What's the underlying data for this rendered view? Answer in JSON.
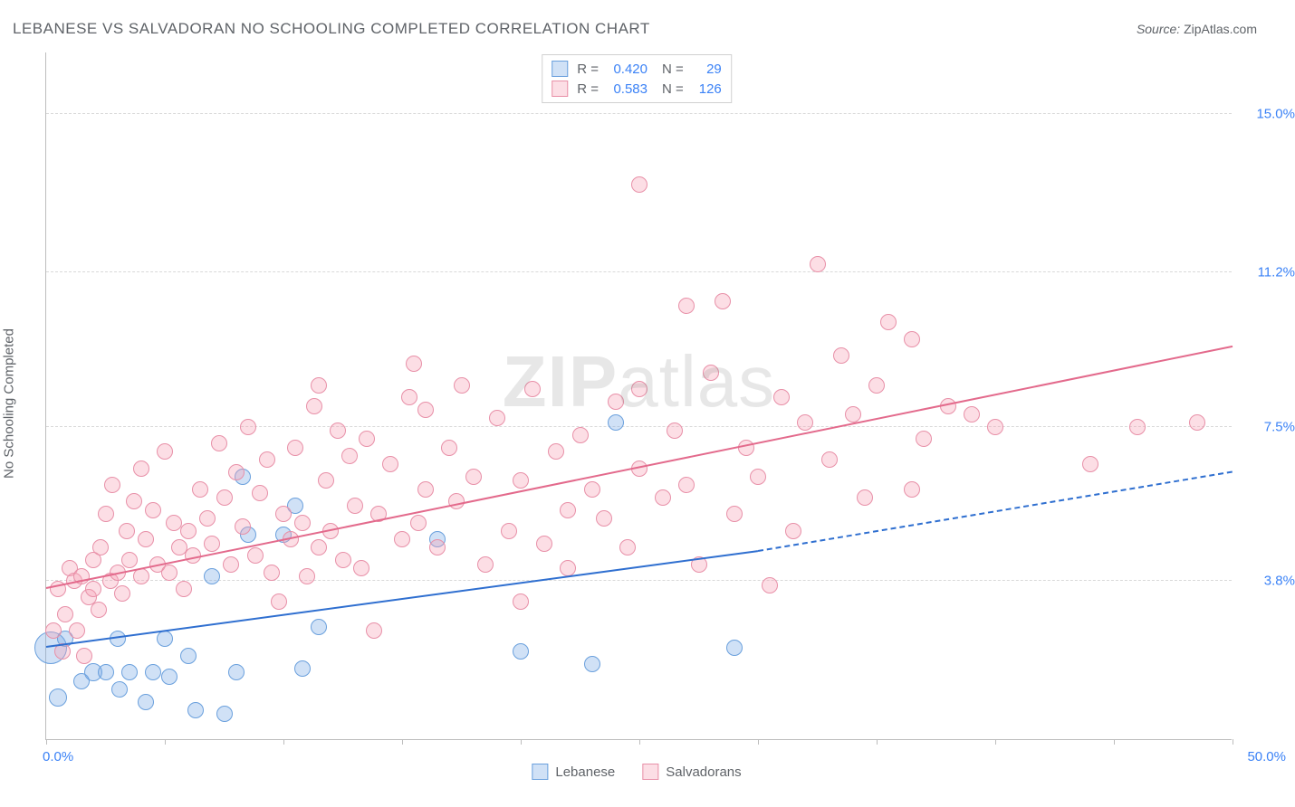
{
  "title": "LEBANESE VS SALVADORAN NO SCHOOLING COMPLETED CORRELATION CHART",
  "source_label": "Source:",
  "source_name": "ZipAtlas.com",
  "watermark_bold": "ZIP",
  "watermark_light": "atlas",
  "y_axis_title": "No Schooling Completed",
  "x_axis": {
    "min_label": "0.0%",
    "max_label": "50.0%",
    "min": 0,
    "max": 50,
    "ticks": [
      0,
      5,
      10,
      15,
      20,
      25,
      30,
      35,
      40,
      45,
      50
    ]
  },
  "y_axis": {
    "min": 0,
    "max": 16.5,
    "grid": [
      {
        "v": 3.8,
        "label": "3.8%"
      },
      {
        "v": 7.5,
        "label": "7.5%"
      },
      {
        "v": 11.2,
        "label": "11.2%"
      },
      {
        "v": 15.0,
        "label": "15.0%"
      }
    ]
  },
  "series": [
    {
      "name": "Lebanese",
      "fill": "rgba(120,170,230,0.35)",
      "stroke": "#6aa0dd",
      "line_color": "#2f6fd0",
      "r_value": "0.420",
      "n_value": "29",
      "trend": {
        "x1": 0,
        "y1": 2.2,
        "x2_solid": 30,
        "y2_solid": 4.5,
        "x2_ext": 50,
        "y2_ext": 6.4
      },
      "points": [
        {
          "x": 0.2,
          "y": 2.2,
          "r": 18
        },
        {
          "x": 0.5,
          "y": 1.0,
          "r": 10
        },
        {
          "x": 0.8,
          "y": 2.4,
          "r": 9
        },
        {
          "x": 1.5,
          "y": 1.4,
          "r": 9
        },
        {
          "x": 2.0,
          "y": 1.6,
          "r": 10
        },
        {
          "x": 2.5,
          "y": 1.6,
          "r": 9
        },
        {
          "x": 3.0,
          "y": 2.4,
          "r": 9
        },
        {
          "x": 3.1,
          "y": 1.2,
          "r": 9
        },
        {
          "x": 3.5,
          "y": 1.6,
          "r": 9
        },
        {
          "x": 4.2,
          "y": 0.9,
          "r": 9
        },
        {
          "x": 4.5,
          "y": 1.6,
          "r": 9
        },
        {
          "x": 5.0,
          "y": 2.4,
          "r": 9
        },
        {
          "x": 5.2,
          "y": 1.5,
          "r": 9
        },
        {
          "x": 6.0,
          "y": 2.0,
          "r": 9
        },
        {
          "x": 6.3,
          "y": 0.7,
          "r": 9
        },
        {
          "x": 7.0,
          "y": 3.9,
          "r": 9
        },
        {
          "x": 7.5,
          "y": 0.6,
          "r": 9
        },
        {
          "x": 8.0,
          "y": 1.6,
          "r": 9
        },
        {
          "x": 8.3,
          "y": 6.3,
          "r": 9
        },
        {
          "x": 8.5,
          "y": 4.9,
          "r": 9
        },
        {
          "x": 10.0,
          "y": 4.9,
          "r": 9
        },
        {
          "x": 10.5,
          "y": 5.6,
          "r": 9
        },
        {
          "x": 10.8,
          "y": 1.7,
          "r": 9
        },
        {
          "x": 11.5,
          "y": 2.7,
          "r": 9
        },
        {
          "x": 16.5,
          "y": 4.8,
          "r": 9
        },
        {
          "x": 20.0,
          "y": 2.1,
          "r": 9
        },
        {
          "x": 23.0,
          "y": 1.8,
          "r": 9
        },
        {
          "x": 24.0,
          "y": 7.6,
          "r": 9
        },
        {
          "x": 29.0,
          "y": 2.2,
          "r": 9
        }
      ]
    },
    {
      "name": "Salvadorans",
      "fill": "rgba(245,160,180,0.35)",
      "stroke": "#e890a8",
      "line_color": "#e36a8c",
      "r_value": "0.583",
      "n_value": "126",
      "trend": {
        "x1": 0,
        "y1": 3.6,
        "x2_solid": 50,
        "y2_solid": 9.4,
        "x2_ext": 50,
        "y2_ext": 9.4
      },
      "points": [
        {
          "x": 0.3,
          "y": 2.6,
          "r": 9
        },
        {
          "x": 0.5,
          "y": 3.6,
          "r": 9
        },
        {
          "x": 0.7,
          "y": 2.1,
          "r": 9
        },
        {
          "x": 0.8,
          "y": 3.0,
          "r": 9
        },
        {
          "x": 1.0,
          "y": 4.1,
          "r": 9
        },
        {
          "x": 1.2,
          "y": 3.8,
          "r": 9
        },
        {
          "x": 1.3,
          "y": 2.6,
          "r": 9
        },
        {
          "x": 1.5,
          "y": 3.9,
          "r": 9
        },
        {
          "x": 1.6,
          "y": 2.0,
          "r": 9
        },
        {
          "x": 1.8,
          "y": 3.4,
          "r": 9
        },
        {
          "x": 2.0,
          "y": 4.3,
          "r": 9
        },
        {
          "x": 2.0,
          "y": 3.6,
          "r": 9
        },
        {
          "x": 2.2,
          "y": 3.1,
          "r": 9
        },
        {
          "x": 2.3,
          "y": 4.6,
          "r": 9
        },
        {
          "x": 2.5,
          "y": 5.4,
          "r": 9
        },
        {
          "x": 2.7,
          "y": 3.8,
          "r": 9
        },
        {
          "x": 2.8,
          "y": 6.1,
          "r": 9
        },
        {
          "x": 3.0,
          "y": 4.0,
          "r": 9
        },
        {
          "x": 3.2,
          "y": 3.5,
          "r": 9
        },
        {
          "x": 3.4,
          "y": 5.0,
          "r": 9
        },
        {
          "x": 3.5,
          "y": 4.3,
          "r": 9
        },
        {
          "x": 3.7,
          "y": 5.7,
          "r": 9
        },
        {
          "x": 4.0,
          "y": 6.5,
          "r": 9
        },
        {
          "x": 4.0,
          "y": 3.9,
          "r": 9
        },
        {
          "x": 4.2,
          "y": 4.8,
          "r": 9
        },
        {
          "x": 4.5,
          "y": 5.5,
          "r": 9
        },
        {
          "x": 4.7,
          "y": 4.2,
          "r": 9
        },
        {
          "x": 5.0,
          "y": 6.9,
          "r": 9
        },
        {
          "x": 5.2,
          "y": 4.0,
          "r": 9
        },
        {
          "x": 5.4,
          "y": 5.2,
          "r": 9
        },
        {
          "x": 5.6,
          "y": 4.6,
          "r": 9
        },
        {
          "x": 5.8,
          "y": 3.6,
          "r": 9
        },
        {
          "x": 6.0,
          "y": 5.0,
          "r": 9
        },
        {
          "x": 6.2,
          "y": 4.4,
          "r": 9
        },
        {
          "x": 6.5,
          "y": 6.0,
          "r": 9
        },
        {
          "x": 6.8,
          "y": 5.3,
          "r": 9
        },
        {
          "x": 7.0,
          "y": 4.7,
          "r": 9
        },
        {
          "x": 7.3,
          "y": 7.1,
          "r": 9
        },
        {
          "x": 7.5,
          "y": 5.8,
          "r": 9
        },
        {
          "x": 7.8,
          "y": 4.2,
          "r": 9
        },
        {
          "x": 8.0,
          "y": 6.4,
          "r": 9
        },
        {
          "x": 8.3,
          "y": 5.1,
          "r": 9
        },
        {
          "x": 8.5,
          "y": 7.5,
          "r": 9
        },
        {
          "x": 8.8,
          "y": 4.4,
          "r": 9
        },
        {
          "x": 9.0,
          "y": 5.9,
          "r": 9
        },
        {
          "x": 9.3,
          "y": 6.7,
          "r": 9
        },
        {
          "x": 9.5,
          "y": 4.0,
          "r": 9
        },
        {
          "x": 9.8,
          "y": 3.3,
          "r": 9
        },
        {
          "x": 10.0,
          "y": 5.4,
          "r": 9
        },
        {
          "x": 10.3,
          "y": 4.8,
          "r": 9
        },
        {
          "x": 10.5,
          "y": 7.0,
          "r": 9
        },
        {
          "x": 10.8,
          "y": 5.2,
          "r": 9
        },
        {
          "x": 11.0,
          "y": 3.9,
          "r": 9
        },
        {
          "x": 11.3,
          "y": 8.0,
          "r": 9
        },
        {
          "x": 11.5,
          "y": 4.6,
          "r": 9
        },
        {
          "x": 11.5,
          "y": 8.5,
          "r": 9
        },
        {
          "x": 11.8,
          "y": 6.2,
          "r": 9
        },
        {
          "x": 12.0,
          "y": 5.0,
          "r": 9
        },
        {
          "x": 12.3,
          "y": 7.4,
          "r": 9
        },
        {
          "x": 12.5,
          "y": 4.3,
          "r": 9
        },
        {
          "x": 12.8,
          "y": 6.8,
          "r": 9
        },
        {
          "x": 13.0,
          "y": 5.6,
          "r": 9
        },
        {
          "x": 13.3,
          "y": 4.1,
          "r": 9
        },
        {
          "x": 13.5,
          "y": 7.2,
          "r": 9
        },
        {
          "x": 13.8,
          "y": 2.6,
          "r": 9
        },
        {
          "x": 14.0,
          "y": 5.4,
          "r": 9
        },
        {
          "x": 14.5,
          "y": 6.6,
          "r": 9
        },
        {
          "x": 15.0,
          "y": 4.8,
          "r": 9
        },
        {
          "x": 15.3,
          "y": 8.2,
          "r": 9
        },
        {
          "x": 15.5,
          "y": 9.0,
          "r": 9
        },
        {
          "x": 15.7,
          "y": 5.2,
          "r": 9
        },
        {
          "x": 16.0,
          "y": 6.0,
          "r": 9
        },
        {
          "x": 16.0,
          "y": 7.9,
          "r": 9
        },
        {
          "x": 16.5,
          "y": 4.6,
          "r": 9
        },
        {
          "x": 17.0,
          "y": 7.0,
          "r": 9
        },
        {
          "x": 17.3,
          "y": 5.7,
          "r": 9
        },
        {
          "x": 17.5,
          "y": 8.5,
          "r": 9
        },
        {
          "x": 18.0,
          "y": 6.3,
          "r": 9
        },
        {
          "x": 18.5,
          "y": 4.2,
          "r": 9
        },
        {
          "x": 19.0,
          "y": 7.7,
          "r": 9
        },
        {
          "x": 19.5,
          "y": 5.0,
          "r": 9
        },
        {
          "x": 20.0,
          "y": 6.2,
          "r": 9
        },
        {
          "x": 20.0,
          "y": 3.3,
          "r": 9
        },
        {
          "x": 20.5,
          "y": 8.4,
          "r": 9
        },
        {
          "x": 21.0,
          "y": 4.7,
          "r": 9
        },
        {
          "x": 21.5,
          "y": 6.9,
          "r": 9
        },
        {
          "x": 22.0,
          "y": 5.5,
          "r": 9
        },
        {
          "x": 22.0,
          "y": 4.1,
          "r": 9
        },
        {
          "x": 22.5,
          "y": 7.3,
          "r": 9
        },
        {
          "x": 23.0,
          "y": 6.0,
          "r": 9
        },
        {
          "x": 23.5,
          "y": 5.3,
          "r": 9
        },
        {
          "x": 24.0,
          "y": 8.1,
          "r": 9
        },
        {
          "x": 24.5,
          "y": 4.6,
          "r": 9
        },
        {
          "x": 25.0,
          "y": 8.4,
          "r": 9
        },
        {
          "x": 25.0,
          "y": 6.5,
          "r": 9
        },
        {
          "x": 25.0,
          "y": 13.3,
          "r": 9
        },
        {
          "x": 26.0,
          "y": 5.8,
          "r": 9
        },
        {
          "x": 26.5,
          "y": 7.4,
          "r": 9
        },
        {
          "x": 27.0,
          "y": 6.1,
          "r": 9
        },
        {
          "x": 27.0,
          "y": 10.4,
          "r": 9
        },
        {
          "x": 27.5,
          "y": 4.2,
          "r": 9
        },
        {
          "x": 28.0,
          "y": 8.8,
          "r": 9
        },
        {
          "x": 28.5,
          "y": 10.5,
          "r": 9
        },
        {
          "x": 29.0,
          "y": 5.4,
          "r": 9
        },
        {
          "x": 29.5,
          "y": 7.0,
          "r": 9
        },
        {
          "x": 30.0,
          "y": 6.3,
          "r": 9
        },
        {
          "x": 30.5,
          "y": 3.7,
          "r": 9
        },
        {
          "x": 31.0,
          "y": 8.2,
          "r": 9
        },
        {
          "x": 31.5,
          "y": 5.0,
          "r": 9
        },
        {
          "x": 32.0,
          "y": 7.6,
          "r": 9
        },
        {
          "x": 32.5,
          "y": 11.4,
          "r": 9
        },
        {
          "x": 33.0,
          "y": 6.7,
          "r": 9
        },
        {
          "x": 33.5,
          "y": 9.2,
          "r": 9
        },
        {
          "x": 34.0,
          "y": 7.8,
          "r": 9
        },
        {
          "x": 34.5,
          "y": 5.8,
          "r": 9
        },
        {
          "x": 35.0,
          "y": 8.5,
          "r": 9
        },
        {
          "x": 35.5,
          "y": 10.0,
          "r": 9
        },
        {
          "x": 36.5,
          "y": 9.6,
          "r": 9
        },
        {
          "x": 36.5,
          "y": 6.0,
          "r": 9
        },
        {
          "x": 37.0,
          "y": 7.2,
          "r": 9
        },
        {
          "x": 38.0,
          "y": 8.0,
          "r": 9
        },
        {
          "x": 39.0,
          "y": 7.8,
          "r": 9
        },
        {
          "x": 40.0,
          "y": 7.5,
          "r": 9
        },
        {
          "x": 44.0,
          "y": 6.6,
          "r": 9
        },
        {
          "x": 46.0,
          "y": 7.5,
          "r": 9
        },
        {
          "x": 48.5,
          "y": 7.6,
          "r": 9
        }
      ]
    }
  ]
}
